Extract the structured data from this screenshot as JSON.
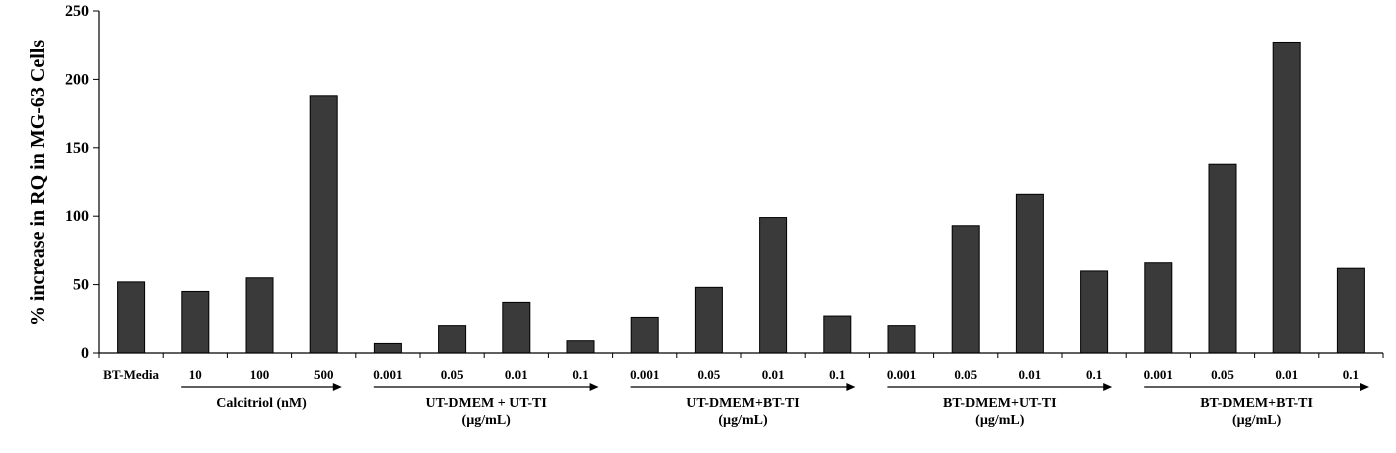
{
  "chart_data": {
    "type": "bar",
    "ylabel": "% increase in RQ in MG-63 Cells",
    "ylim": [
      0,
      250
    ],
    "yticks": [
      0,
      50,
      100,
      150,
      200,
      250
    ],
    "grid": false,
    "bar_color": "#3a3a3a",
    "categories": [
      "BT-Media",
      "10",
      "100",
      "500",
      "0.001",
      "0.05",
      "0.01",
      "0.1",
      "0.001",
      "0.05",
      "0.01",
      "0.1",
      "0.001",
      "0.05",
      "0.01",
      "0.1",
      "0.001",
      "0.05",
      "0.01",
      "0.1"
    ],
    "values": [
      52,
      45,
      55,
      188,
      7,
      20,
      37,
      9,
      26,
      48,
      99,
      27,
      20,
      93,
      116,
      60,
      66,
      138,
      227,
      62
    ],
    "groups": [
      {
        "lines": [
          "Calcitriol (nM)"
        ],
        "start": 1,
        "end": 3
      },
      {
        "lines": [
          "UT-DMEM + UT-TI",
          "(µg/mL)"
        ],
        "start": 4,
        "end": 7
      },
      {
        "lines": [
          "UT-DMEM+BT-TI",
          "(µg/mL)"
        ],
        "start": 8,
        "end": 11
      },
      {
        "lines": [
          "BT-DMEM+UT-TI",
          "(µg/mL)"
        ],
        "start": 12,
        "end": 15
      },
      {
        "lines": [
          "BT-DMEM+BT-TI",
          "(µg/mL)"
        ],
        "start": 16,
        "end": 19
      }
    ]
  }
}
